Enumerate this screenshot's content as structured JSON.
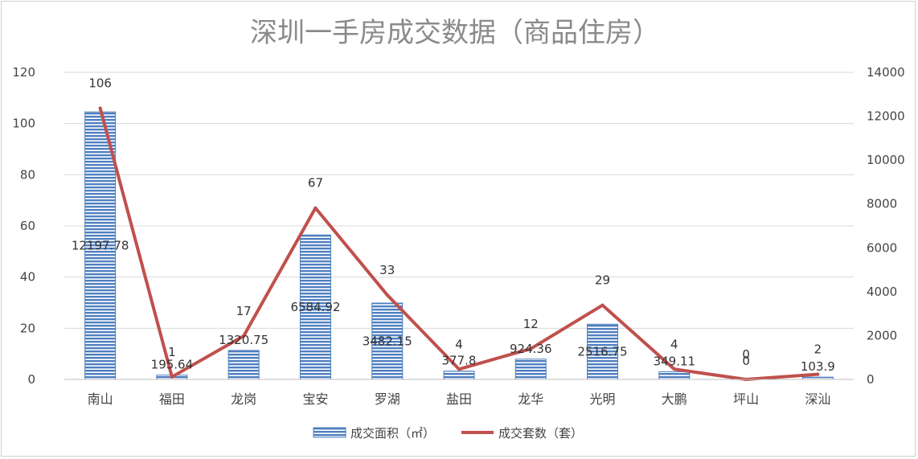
{
  "chart_data": {
    "type": "bar",
    "title": "深圳一手房成交数据（商品住房）",
    "categories": [
      "南山",
      "福田",
      "龙岗",
      "宝安",
      "罗湖",
      "盐田",
      "龙华",
      "光明",
      "大鹏",
      "坪山",
      "深汕"
    ],
    "series": [
      {
        "name": "成交面积（㎡）",
        "type": "bar",
        "axis": "right",
        "values": [
          12197.78,
          195.64,
          1320.75,
          6584.92,
          3482.15,
          377.8,
          924.36,
          2516.75,
          349.11,
          0,
          103.9
        ],
        "labels": [
          "12197.78",
          "195.64",
          "1320.75",
          "6584.92",
          "3482.15",
          "377.8",
          "924.36",
          "2516.75",
          "349.11",
          "0",
          "103.9"
        ],
        "color": "#4f7fc0"
      },
      {
        "name": "成交套数（套）",
        "type": "line",
        "axis": "left",
        "values": [
          106,
          1,
          17,
          67,
          33,
          4,
          12,
          29,
          4,
          0,
          2
        ],
        "labels": [
          "106",
          "1",
          "17",
          "67",
          "33",
          "4",
          "12",
          "29",
          "4",
          "0",
          "2"
        ],
        "color": "#c0504d"
      }
    ],
    "left_axis": {
      "min": 0,
      "max": 120,
      "ticks": [
        "0",
        "20",
        "40",
        "60",
        "80",
        "100",
        "120"
      ]
    },
    "right_axis": {
      "min": 0,
      "max": 14000,
      "ticks": [
        "0",
        "2000",
        "4000",
        "6000",
        "8000",
        "10000",
        "12000",
        "14000"
      ]
    },
    "grid": true,
    "legend": "bottom"
  }
}
